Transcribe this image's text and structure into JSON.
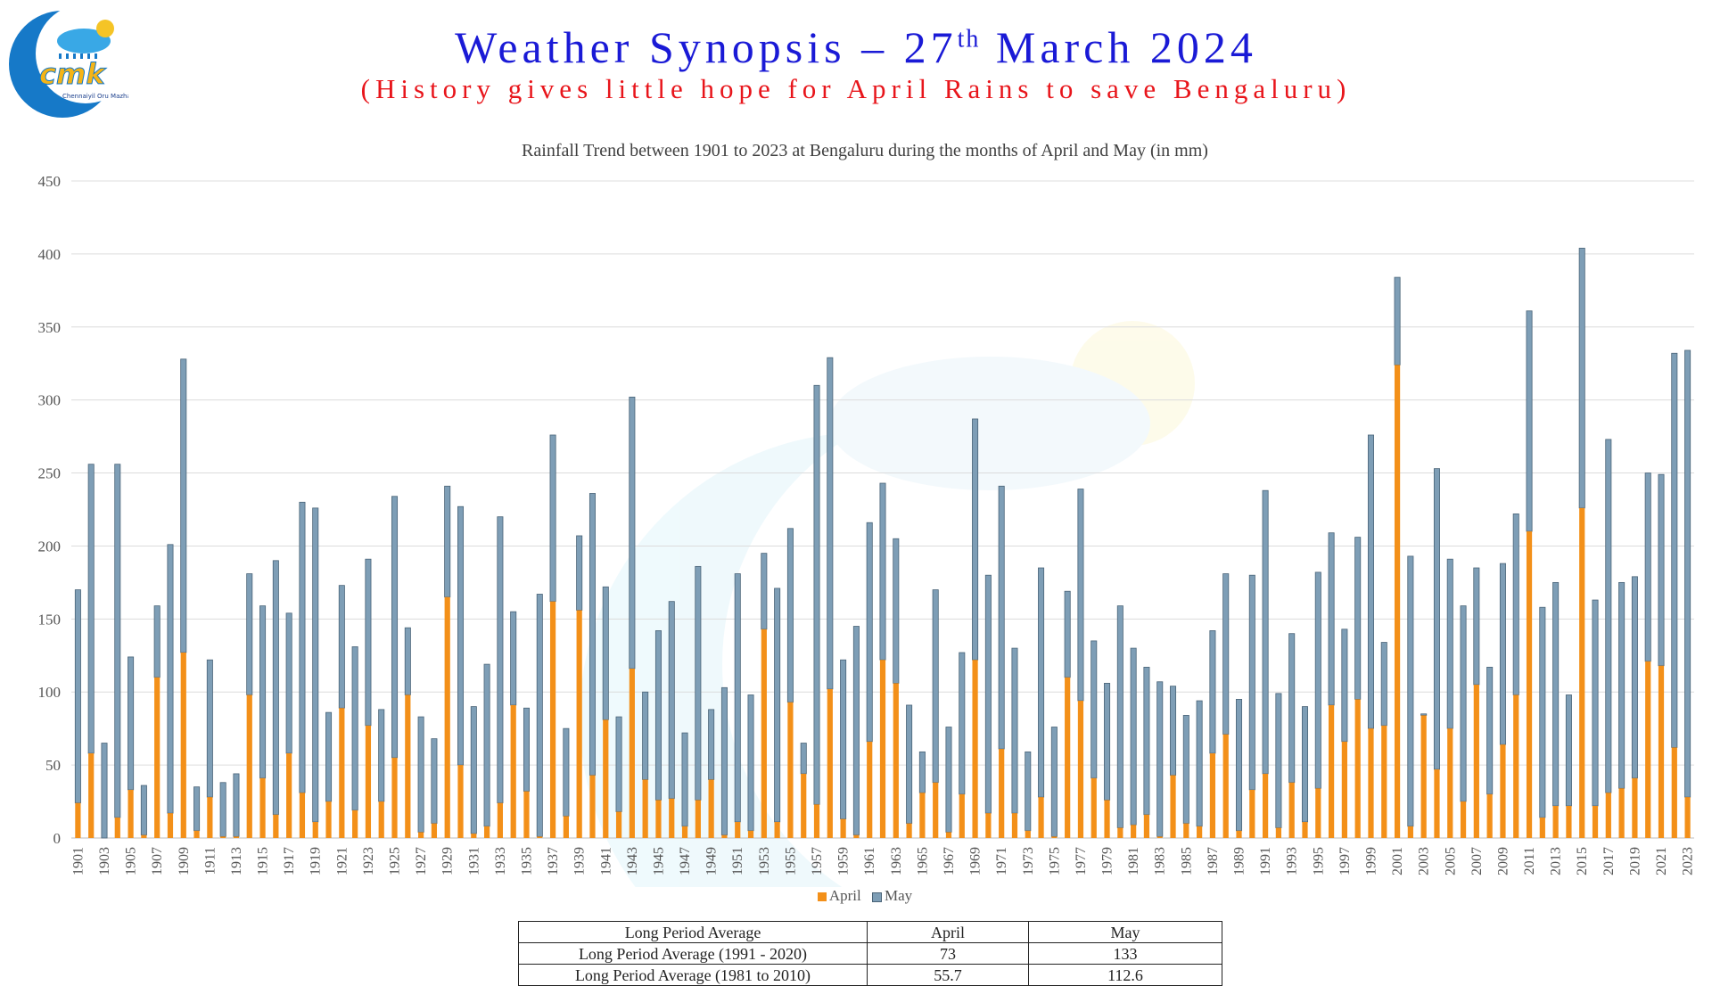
{
  "header": {
    "title_main": "Weather Synopsis – 27",
    "title_sup": "th",
    "title_rest": " March 2024",
    "subtitle": "(History gives little hope for April Rains to save Bengaluru)",
    "logo_text": "Chennaiyil Oru Mazhaikkaalam"
  },
  "colors": {
    "april": "#f39019",
    "may": "#7e9eb6",
    "may_stroke": "#4a6478",
    "title": "#1a1ad6",
    "subtitle": "#e8151b"
  },
  "chart_data": {
    "type": "bar",
    "stacked": true,
    "title": "Rainfall Trend between 1901 to 2023 at Bengaluru during the months of April and May (in mm)",
    "ylim": [
      0,
      450
    ],
    "yticks": [
      0,
      50,
      100,
      150,
      200,
      250,
      300,
      350,
      400,
      450
    ],
    "grid": true,
    "legend_position": "bottom",
    "x": [
      1901,
      1902,
      1903,
      1904,
      1905,
      1906,
      1907,
      1908,
      1909,
      1910,
      1911,
      1912,
      1913,
      1914,
      1915,
      1916,
      1917,
      1918,
      1919,
      1920,
      1921,
      1922,
      1923,
      1924,
      1925,
      1926,
      1927,
      1928,
      1929,
      1930,
      1931,
      1932,
      1933,
      1934,
      1935,
      1936,
      1937,
      1938,
      1939,
      1940,
      1941,
      1942,
      1943,
      1944,
      1945,
      1946,
      1947,
      1948,
      1949,
      1950,
      1951,
      1952,
      1953,
      1954,
      1955,
      1956,
      1957,
      1958,
      1959,
      1960,
      1961,
      1962,
      1963,
      1964,
      1965,
      1966,
      1967,
      1968,
      1969,
      1970,
      1971,
      1972,
      1973,
      1974,
      1975,
      1976,
      1977,
      1978,
      1979,
      1980,
      1981,
      1982,
      1983,
      1984,
      1985,
      1986,
      1987,
      1988,
      1989,
      1990,
      1991,
      1992,
      1993,
      1994,
      1995,
      1996,
      1997,
      1998,
      1999,
      2000,
      2001,
      2002,
      2003,
      2004,
      2005,
      2006,
      2007,
      2008,
      2009,
      2010,
      2011,
      2012,
      2013,
      2014,
      2015,
      2016,
      2017,
      2018,
      2019,
      2020,
      2021,
      2022,
      2023
    ],
    "x_tick_labels": [
      "1901",
      "1903",
      "1905",
      "1907",
      "1909",
      "1911",
      "1913",
      "1915",
      "1917",
      "1919",
      "1921",
      "1923",
      "1925",
      "1927",
      "1929",
      "1931",
      "1933",
      "1935",
      "1937",
      "1939",
      "1941",
      "1943",
      "1945",
      "1947",
      "1949",
      "1951",
      "1953",
      "1955",
      "1957",
      "1959",
      "1961",
      "1963",
      "1965",
      "1967",
      "1969",
      "1971",
      "1973",
      "1975",
      "1977",
      "1979",
      "1981",
      "1983",
      "1985",
      "1987",
      "1989",
      "1991",
      "1993",
      "1995",
      "1997",
      "1999",
      "2001",
      "2003",
      "2005",
      "2007",
      "2009",
      "2011",
      "2013",
      "2015",
      "2017",
      "2019",
      "2021",
      "2023"
    ],
    "series": [
      {
        "name": "April",
        "values": [
          24,
          58,
          0,
          14,
          33,
          2,
          110,
          17,
          127,
          5,
          28,
          1,
          1,
          98,
          41,
          16,
          58,
          31,
          11,
          25,
          89,
          19,
          77,
          25,
          55,
          98,
          4,
          10,
          165,
          50,
          3,
          8,
          24,
          91,
          32,
          1,
          162,
          15,
          156,
          43,
          81,
          18,
          116,
          40,
          26,
          27,
          8,
          26,
          40,
          2,
          11,
          5,
          143,
          11,
          93,
          44,
          23,
          102,
          13,
          2,
          66,
          122,
          106,
          10,
          31,
          38,
          4,
          30,
          122,
          17,
          61,
          17,
          5,
          28,
          1,
          110,
          94,
          41,
          26,
          7,
          9,
          16,
          1,
          43,
          10,
          8,
          58,
          71,
          5,
          33,
          44,
          7,
          38,
          11,
          34,
          91,
          66,
          95,
          75,
          77,
          324,
          8,
          84,
          47,
          75,
          25,
          105,
          30,
          64,
          98,
          210,
          14,
          22,
          22,
          226,
          22,
          31,
          34,
          41,
          121,
          118,
          62,
          28
        ]
      },
      {
        "name": "May",
        "values": [
          146,
          198,
          65,
          242,
          91,
          34,
          49,
          184,
          201,
          30,
          94,
          37,
          43,
          83,
          118,
          174,
          96,
          199,
          215,
          61,
          84,
          112,
          114,
          63,
          179,
          46,
          79,
          58,
          76,
          177,
          87,
          111,
          196,
          64,
          57,
          166,
          114,
          60,
          51,
          193,
          91,
          65,
          186,
          60,
          116,
          135,
          64,
          160,
          48,
          101,
          170,
          93,
          52,
          160,
          119,
          21,
          287,
          227,
          109,
          143,
          150,
          121,
          99,
          81,
          28,
          132,
          72,
          97,
          165,
          163,
          180,
          113,
          54,
          157,
          75,
          59,
          145,
          94,
          80,
          152,
          121,
          101,
          106,
          61,
          74,
          86,
          84,
          110,
          90,
          147,
          194,
          92,
          102,
          79,
          148,
          118,
          77,
          111,
          201,
          57,
          60,
          185,
          1,
          206,
          116,
          134,
          80,
          87,
          124,
          124,
          151,
          144,
          153,
          76,
          178,
          141,
          242,
          141,
          138,
          129,
          131,
          270,
          306
        ]
      }
    ]
  },
  "lpa_table": {
    "header": [
      "Long Period Average",
      "April",
      "May"
    ],
    "rows": [
      [
        "Long Period Average (1991 - 2020)",
        "73",
        "133"
      ],
      [
        "Long Period Average (1981 to 2010)",
        "55.7",
        "112.6"
      ]
    ]
  }
}
